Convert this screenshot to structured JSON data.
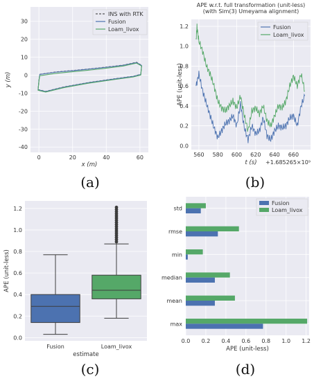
{
  "chart_data": [
    {
      "panel": "(a)",
      "type": "line",
      "xlabel": "x (m)",
      "ylabel": "y (m)",
      "xlim": [
        -5,
        65
      ],
      "ylim": [
        -43,
        38
      ],
      "xticks": [
        0,
        20,
        40,
        60
      ],
      "yticks": [
        30,
        20,
        10,
        0,
        -10,
        -20,
        -30,
        -40
      ],
      "grid": true,
      "legend_position": "top-right",
      "series": [
        {
          "name": "INS with RTK",
          "color": "#555555",
          "dashed": true,
          "x": [
            0.5,
            10,
            20,
            30,
            40,
            50,
            58,
            61,
            60.5,
            56,
            45,
            30,
            15,
            4,
            -0.5,
            0,
            0.5
          ],
          "y": [
            0.5,
            1.8,
            2.6,
            3.5,
            4.5,
            5.6,
            7.2,
            5.5,
            0.5,
            -0.6,
            -2,
            -4,
            -6.5,
            -9,
            -8,
            -3,
            0.5
          ]
        },
        {
          "name": "Fusion",
          "color": "#4c72b0",
          "dashed": false,
          "x": [
            0.5,
            10,
            20,
            30,
            40,
            50,
            58,
            61,
            60.5,
            56,
            45,
            30,
            15,
            4,
            -0.5,
            0,
            0.5
          ],
          "y": [
            0.4,
            1.7,
            2.5,
            3.4,
            4.4,
            5.5,
            7.0,
            5.4,
            0.4,
            -0.7,
            -2.1,
            -4.1,
            -6.6,
            -9.1,
            -8.1,
            -3.1,
            0.4
          ]
        },
        {
          "name": "Loam_livox",
          "color": "#55a868",
          "dashed": false,
          "x": [
            0.5,
            10,
            20,
            30,
            40,
            50,
            58,
            61,
            60.5,
            56,
            45,
            30,
            15,
            4,
            -0.5,
            0,
            0.5
          ],
          "y": [
            -0.3,
            1.0,
            1.9,
            2.8,
            3.9,
            5.1,
            6.7,
            5.1,
            0.1,
            -1.0,
            -2.4,
            -4.4,
            -6.9,
            -9.4,
            -8.4,
            -3.5,
            -0.3
          ]
        }
      ]
    },
    {
      "panel": "(b)",
      "type": "line",
      "title_lines": [
        "APE w.r.t. full transformation (unit-less)",
        "(with Sim(3) Umeyama alignment)"
      ],
      "xlabel": "t (s)",
      "x_offset_label": "+1.685265×10⁹",
      "ylabel": "APE (unit-less)",
      "xlim": [
        552,
        678
      ],
      "ylim": [
        -0.04,
        1.27
      ],
      "xticks": [
        560,
        580,
        600,
        620,
        640,
        660
      ],
      "yticks": [
        0.0,
        0.2,
        0.4,
        0.6,
        0.8,
        1.0,
        1.2
      ],
      "grid": true,
      "legend_position": "top-right",
      "series": [
        {
          "name": "Fusion",
          "color": "#4c72b0",
          "x": [
            557,
            560,
            564,
            568,
            572,
            576,
            580,
            584,
            588,
            592,
            596,
            600,
            604,
            608,
            612,
            616,
            620,
            624,
            628,
            632,
            636,
            640,
            644,
            648,
            652,
            656,
            660,
            664,
            668,
            672
          ],
          "y": [
            0.6,
            0.72,
            0.55,
            0.42,
            0.3,
            0.18,
            0.08,
            0.15,
            0.22,
            0.25,
            0.3,
            0.2,
            0.42,
            0.18,
            0.06,
            0.2,
            0.12,
            0.15,
            0.28,
            0.1,
            0.06,
            0.15,
            0.2,
            0.18,
            0.2,
            0.28,
            0.3,
            0.2,
            0.4,
            0.5
          ]
        },
        {
          "name": "Loam_livox",
          "color": "#55a868",
          "x": [
            557,
            558,
            560,
            564,
            568,
            572,
            576,
            580,
            584,
            588,
            592,
            596,
            600,
            604,
            608,
            612,
            616,
            620,
            624,
            628,
            632,
            636,
            640,
            644,
            648,
            652,
            656,
            660,
            664,
            668,
            672
          ],
          "y": [
            1.05,
            1.2,
            1.05,
            0.95,
            0.8,
            0.72,
            0.6,
            0.45,
            0.38,
            0.35,
            0.4,
            0.45,
            0.38,
            0.5,
            0.3,
            0.15,
            0.35,
            0.38,
            0.32,
            0.4,
            0.25,
            0.2,
            0.3,
            0.4,
            0.38,
            0.45,
            0.6,
            0.7,
            0.6,
            0.72,
            0.55
          ]
        }
      ]
    },
    {
      "panel": "(c)",
      "type": "box",
      "xlabel": "estimate",
      "ylabel": "APE (unit-less)",
      "ylim": [
        -0.03,
        1.27
      ],
      "yticks": [
        0.0,
        0.2,
        0.4,
        0.6,
        0.8,
        1.0,
        1.2
      ],
      "grid": true,
      "categories": [
        "Fusion",
        "Loam_livox"
      ],
      "boxes": [
        {
          "name": "Fusion",
          "color": "#4c72b0",
          "whisker_low": 0.03,
          "q1": 0.14,
          "median": 0.29,
          "q3": 0.4,
          "whisker_high": 0.77,
          "outliers": []
        },
        {
          "name": "Loam_livox",
          "color": "#55a868",
          "whisker_low": 0.18,
          "q1": 0.36,
          "median": 0.44,
          "q3": 0.58,
          "whisker_high": 0.87,
          "outliers": [
            0.89,
            0.91,
            0.93,
            0.95,
            0.97,
            0.99,
            1.01,
            1.03,
            1.05,
            1.07,
            1.09,
            1.11,
            1.13,
            1.15,
            1.17,
            1.19,
            1.21
          ]
        }
      ]
    },
    {
      "panel": "(d)",
      "type": "bar",
      "orientation": "horizontal",
      "xlabel": "APE (unit-less)",
      "xlim": [
        0,
        1.23
      ],
      "xticks": [
        0.0,
        0.2,
        0.4,
        0.6,
        0.8,
        1.0,
        1.2
      ],
      "grid": true,
      "legend_position": "top-right",
      "categories": [
        "std",
        "rmse",
        "min",
        "median",
        "mean",
        "max"
      ],
      "series": [
        {
          "name": "Fusion",
          "color": "#4c72b0",
          "values": [
            0.15,
            0.32,
            0.02,
            0.29,
            0.29,
            0.77
          ]
        },
        {
          "name": "Loam_livox",
          "color": "#55a868",
          "values": [
            0.2,
            0.53,
            0.17,
            0.44,
            0.49,
            1.21
          ]
        }
      ]
    }
  ],
  "captions": [
    "(a)",
    "(b)",
    "(c)",
    "(d)"
  ]
}
